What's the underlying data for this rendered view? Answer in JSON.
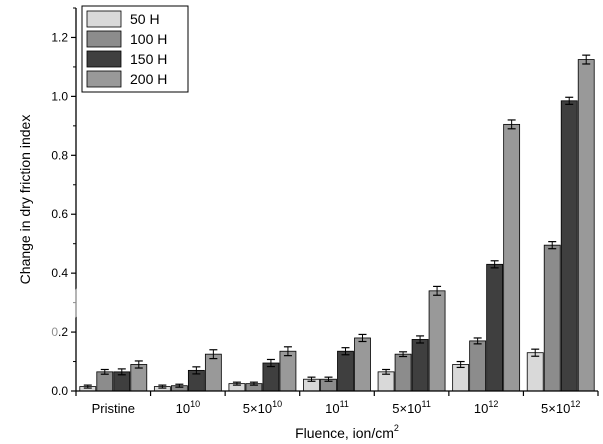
{
  "chart_data": {
    "type": "bar",
    "xlabel": "Fluence, ion/cm",
    "xlabel_sup": "2",
    "ylabel": "Change in dry friction index",
    "ylim": [
      0,
      1.3
    ],
    "yticks": [
      "0.0",
      "0.2",
      "0.4",
      "0.6",
      "0.8",
      "1.0",
      "1.2"
    ],
    "grid": false,
    "legend_position": "top-left",
    "categories": [
      {
        "base": "Pristine",
        "sup": ""
      },
      {
        "base": "10",
        "sup": "10"
      },
      {
        "base": "5×10",
        "sup": "10"
      },
      {
        "base": "10",
        "sup": "11"
      },
      {
        "base": "5×10",
        "sup": "11"
      },
      {
        "base": "10",
        "sup": "12"
      },
      {
        "base": "5×10",
        "sup": "12"
      }
    ],
    "series": [
      {
        "name": "50 H",
        "color": "#d9d9d9",
        "values": [
          0.015,
          0.015,
          0.025,
          0.04,
          0.065,
          0.09,
          0.13
        ],
        "errors": [
          0.005,
          0.005,
          0.005,
          0.007,
          0.008,
          0.01,
          0.012
        ]
      },
      {
        "name": "100 H",
        "color": "#8c8c8c",
        "values": [
          0.065,
          0.018,
          0.025,
          0.04,
          0.125,
          0.17,
          0.495
        ],
        "errors": [
          0.008,
          0.005,
          0.005,
          0.007,
          0.008,
          0.01,
          0.012
        ]
      },
      {
        "name": "150 H",
        "color": "#3f3f3f",
        "values": [
          0.065,
          0.07,
          0.095,
          0.135,
          0.175,
          0.43,
          0.985
        ],
        "errors": [
          0.01,
          0.012,
          0.012,
          0.012,
          0.012,
          0.012,
          0.012
        ]
      },
      {
        "name": "200 H",
        "color": "#999999",
        "values": [
          0.09,
          0.125,
          0.135,
          0.18,
          0.34,
          0.905,
          1.125
        ],
        "errors": [
          0.012,
          0.015,
          0.015,
          0.012,
          0.015,
          0.015,
          0.015
        ]
      }
    ]
  }
}
